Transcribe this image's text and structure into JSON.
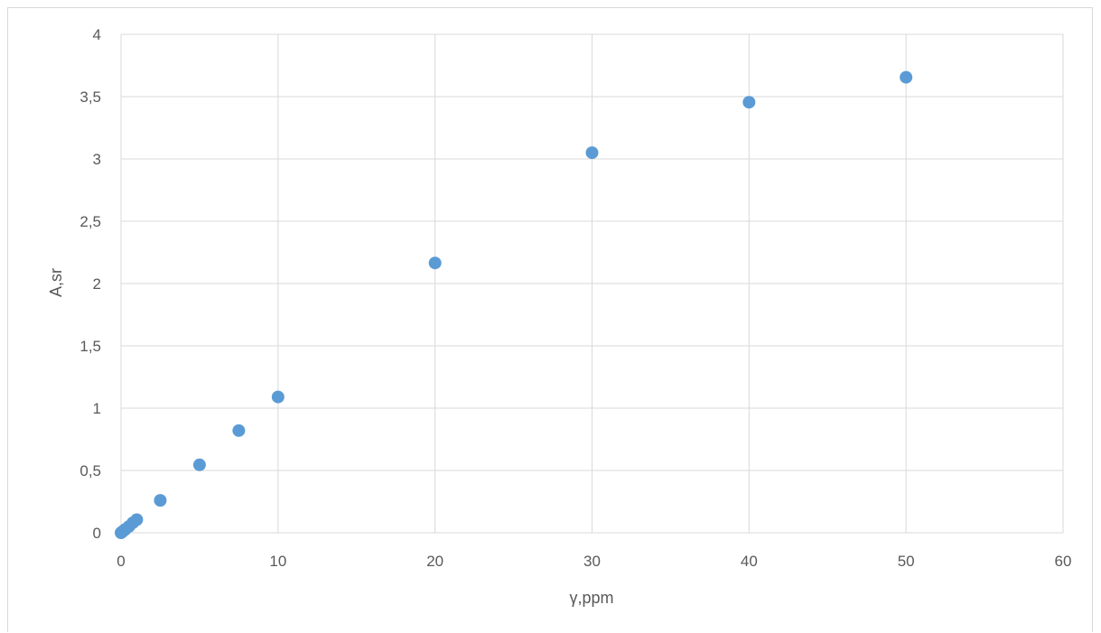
{
  "chart_data": {
    "type": "scatter",
    "title": "",
    "xlabel": "γ,ppm",
    "ylabel": "A,sr",
    "xlim": [
      0,
      60
    ],
    "ylim": [
      0,
      4
    ],
    "xticks": [
      0,
      10,
      20,
      30,
      40,
      50,
      60
    ],
    "yticks": [
      0,
      0.5,
      1,
      1.5,
      2,
      2.5,
      3,
      3.5,
      4
    ],
    "xtick_labels": [
      "0",
      "10",
      "20",
      "30",
      "40",
      "50",
      "60"
    ],
    "ytick_labels": [
      "0",
      "0,5",
      "1",
      "1,5",
      "2",
      "2,5",
      "3",
      "3,5",
      "4"
    ],
    "grid": true,
    "legend": "none",
    "series": [
      {
        "color": "#5b9bd5",
        "points": [
          {
            "x": 0,
            "y": 0
          },
          {
            "x": 0.1,
            "y": 0.01
          },
          {
            "x": 0.25,
            "y": 0.025
          },
          {
            "x": 0.5,
            "y": 0.05
          },
          {
            "x": 0.75,
            "y": 0.08
          },
          {
            "x": 1,
            "y": 0.105
          },
          {
            "x": 2.5,
            "y": 0.26
          },
          {
            "x": 5,
            "y": 0.545
          },
          {
            "x": 7.5,
            "y": 0.82
          },
          {
            "x": 10,
            "y": 1.09
          },
          {
            "x": 20,
            "y": 2.165
          },
          {
            "x": 30,
            "y": 3.05
          },
          {
            "x": 40,
            "y": 3.455
          },
          {
            "x": 50,
            "y": 3.655
          }
        ]
      }
    ]
  }
}
